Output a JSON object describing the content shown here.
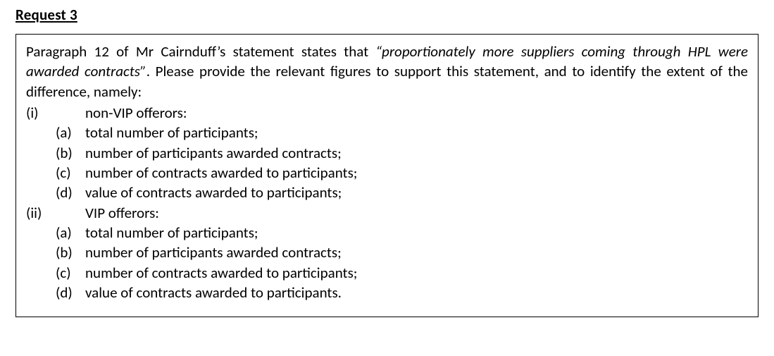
{
  "heading": "Request 3",
  "intro_plain_1": "Paragraph 12 of Mr Cairnduff’s statement states that ",
  "intro_italic": "“proportionately more suppliers coming through HPL were awarded contracts”",
  "intro_plain_2": ". Please provide the relevant figures to support this statement, and to identify the extent of the difference, namely:",
  "items": {
    "i": {
      "marker": "(i)",
      "label": "non-VIP offerors:",
      "sub": {
        "a": {
          "marker": "(a)",
          "text": "total number of participants;"
        },
        "b": {
          "marker": "(b)",
          "text": "number of participants awarded contracts;"
        },
        "c": {
          "marker": "(c)",
          "text": "number of contracts awarded to participants;"
        },
        "d": {
          "marker": "(d)",
          "text": "value of contracts awarded to participants;"
        }
      }
    },
    "ii": {
      "marker": "(ii)",
      "label": "VIP offerors:",
      "sub": {
        "a": {
          "marker": "(a)",
          "text": "total number of participants;"
        },
        "b": {
          "marker": "(b)",
          "text": "number of participants awarded contracts;"
        },
        "c": {
          "marker": "(c)",
          "text": "number of contracts awarded to participants;"
        },
        "d": {
          "marker": "(d)",
          "text": "value of contracts awarded to participants."
        }
      }
    }
  },
  "colors": {
    "text": "#000000",
    "background": "#ffffff",
    "border": "#000000"
  },
  "typography": {
    "font_family": "Calibri",
    "base_size_pt": 16,
    "heading_weight": 700
  }
}
